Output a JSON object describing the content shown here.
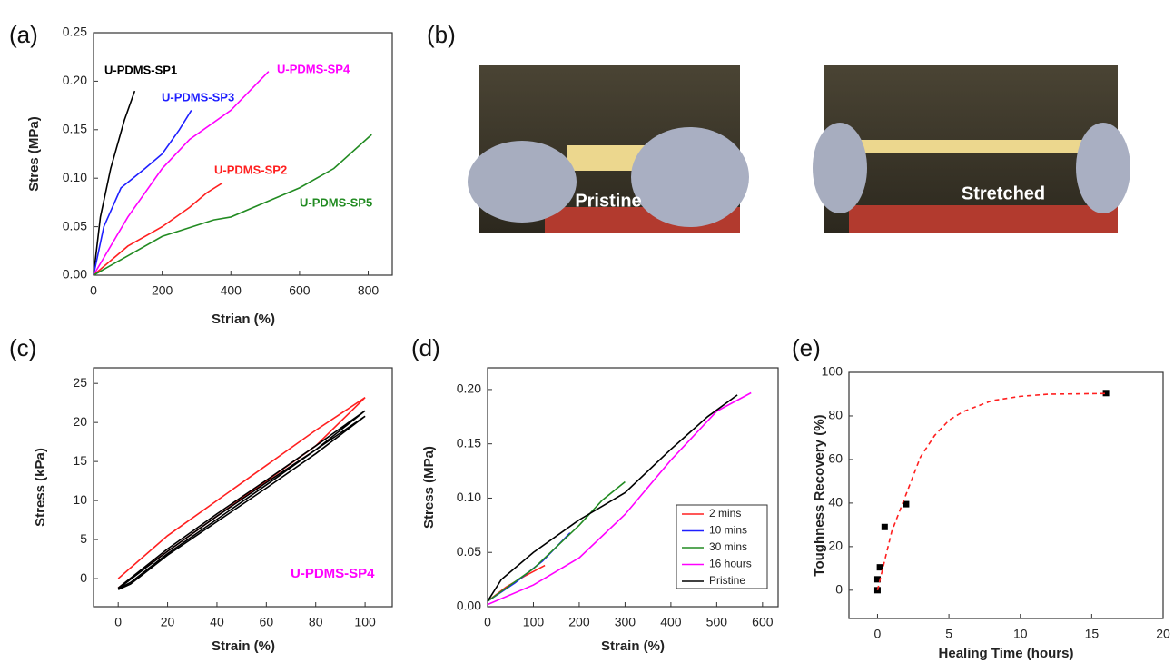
{
  "photos": {
    "panel_label": "(b)",
    "images": [
      {
        "label": "Pristine"
      },
      {
        "label": "Stretched"
      }
    ]
  },
  "chart_data": [
    {
      "type": "line",
      "panel_label": "(a)",
      "x_label": "Strian (%)",
      "y_label": "Stres (MPa)",
      "xlim": [
        0,
        870
      ],
      "xticks": [
        0,
        200,
        400,
        600,
        800
      ],
      "ylim": [
        0,
        0.25
      ],
      "yticks": [
        {
          "value": 0,
          "label": "0.00"
        },
        0.05,
        {
          "value": 0.1,
          "label": "0.10"
        },
        0.15,
        {
          "value": 0.2,
          "label": "0.20"
        },
        0.25
      ],
      "series": [
        {
          "name": "U-PDMS-SP1",
          "color": "#000000",
          "x": [
            0,
            20,
            50,
            90,
            120
          ],
          "values": [
            0,
            0.06,
            0.11,
            0.16,
            0.19
          ]
        },
        {
          "name": "U-PDMS-SP3",
          "color": "#1f1fff",
          "x": [
            0,
            30,
            80,
            150,
            200,
            250,
            285
          ],
          "values": [
            0,
            0.05,
            0.09,
            0.11,
            0.125,
            0.15,
            0.17
          ]
        },
        {
          "name": "U-PDMS-SP4",
          "color": "#ff00ff",
          "x": [
            0,
            100,
            200,
            280,
            400,
            510
          ],
          "values": [
            0,
            0.06,
            0.11,
            0.14,
            0.17,
            0.21
          ]
        },
        {
          "name": "U-PDMS-SP2",
          "color": "#ff2020",
          "x": [
            0,
            100,
            200,
            280,
            330,
            375
          ],
          "values": [
            0,
            0.03,
            0.05,
            0.07,
            0.085,
            0.095
          ]
        },
        {
          "name": "U-PDMS-SP5",
          "color": "#228b22",
          "x": [
            0,
            100,
            200,
            350,
            400,
            500,
            600,
            700,
            810
          ],
          "values": [
            0,
            0.02,
            0.04,
            0.057,
            0.06,
            0.075,
            0.09,
            0.11,
            0.145
          ]
        }
      ]
    },
    {
      "type": "line",
      "panel_label": "(c)",
      "x_label": "Strain (%)",
      "y_label": "Stress (kPa)",
      "xlim": [
        -10,
        111
      ],
      "xticks": [
        0,
        20,
        40,
        60,
        80,
        100
      ],
      "ylim": [
        -3.6,
        27
      ],
      "yticks": [
        0,
        5,
        10,
        15,
        20,
        25
      ],
      "annotation": {
        "text": "U-PDMS-SP4",
        "color": "#ff00ff"
      },
      "series": [
        {
          "color": "#ff2020",
          "x": [
            0,
            20,
            40,
            60,
            80,
            100,
            80,
            60,
            40,
            20,
            5,
            0
          ],
          "values": [
            0,
            5.5,
            10,
            14.5,
            19,
            23.2,
            17,
            12.5,
            8,
            3.5,
            0,
            -1.2
          ]
        },
        {
          "color": "#000000",
          "x": [
            0,
            20,
            40,
            60,
            80,
            100,
            80,
            60,
            40,
            20,
            5,
            0
          ],
          "values": [
            -1.2,
            3.8,
            8.3,
            12.6,
            17,
            21.5,
            16.5,
            12,
            7.6,
            3.2,
            -0.5,
            -1.3
          ]
        },
        {
          "color": "#000000",
          "x": [
            0,
            20,
            40,
            60,
            80,
            100,
            80,
            60,
            40,
            20,
            5,
            0
          ],
          "values": [
            -1.3,
            3.5,
            8,
            12.3,
            16.5,
            20.8,
            16,
            11.6,
            7.3,
            3,
            -0.7,
            -1.4
          ]
        }
      ]
    },
    {
      "type": "line",
      "panel_label": "(d)",
      "x_label": "Strain (%)",
      "y_label": "Stress (MPa)",
      "xlim": [
        0,
        634
      ],
      "xticks": [
        0,
        100,
        200,
        300,
        400,
        500,
        600
      ],
      "ylim": [
        0,
        0.22
      ],
      "yticks": [
        {
          "value": 0,
          "label": "0.00"
        },
        0.05,
        {
          "value": 0.1,
          "label": "0.10"
        },
        0.15,
        {
          "value": 0.2,
          "label": "0.20"
        }
      ],
      "legend": "lower right",
      "series": [
        {
          "name": "2 mins",
          "color": "#ff2020",
          "x": [
            0,
            40,
            80,
            125
          ],
          "values": [
            0.005,
            0.018,
            0.028,
            0.038
          ]
        },
        {
          "name": "10 mins",
          "color": "#1f1fff",
          "x": [
            0,
            60,
            120,
            180
          ],
          "values": [
            0.005,
            0.022,
            0.042,
            0.068
          ]
        },
        {
          "name": "30 mins",
          "color": "#228b22",
          "x": [
            0,
            100,
            200,
            250,
            300
          ],
          "values": [
            0.005,
            0.035,
            0.075,
            0.098,
            0.115
          ]
        },
        {
          "name": "16 hours",
          "color": "#ff00ff",
          "x": [
            0,
            100,
            200,
            300,
            400,
            500,
            575
          ],
          "values": [
            0.002,
            0.02,
            0.045,
            0.085,
            0.135,
            0.18,
            0.197
          ]
        },
        {
          "name": "Pristine",
          "color": "#000000",
          "x": [
            0,
            30,
            100,
            200,
            300,
            400,
            480,
            545
          ],
          "values": [
            0.005,
            0.025,
            0.05,
            0.08,
            0.105,
            0.145,
            0.175,
            0.195
          ]
        }
      ]
    },
    {
      "type": "scatter",
      "panel_label": "(e)",
      "x_label": "Healing Time (hours)",
      "y_label": "Toughness Recovery (%)",
      "xlim": [
        -2,
        20
      ],
      "xticks": [
        0,
        5,
        10,
        15,
        20
      ],
      "ylim": [
        -13,
        100
      ],
      "yticks": [
        0,
        20,
        40,
        60,
        80,
        100
      ],
      "series": [
        {
          "color": "#000000",
          "x": [
            0,
            0,
            0.17,
            0.5,
            2,
            16
          ],
          "values": [
            0,
            5,
            10.5,
            29,
            39.5,
            90.5
          ]
        },
        {
          "color": "#ff2020",
          "dash": true,
          "x": [
            0,
            1,
            2,
            3,
            4,
            5,
            6,
            8,
            10,
            12,
            16
          ],
          "values": [
            0,
            27,
            44,
            61,
            71,
            78,
            82,
            87,
            89,
            90,
            90.3
          ]
        }
      ]
    }
  ]
}
